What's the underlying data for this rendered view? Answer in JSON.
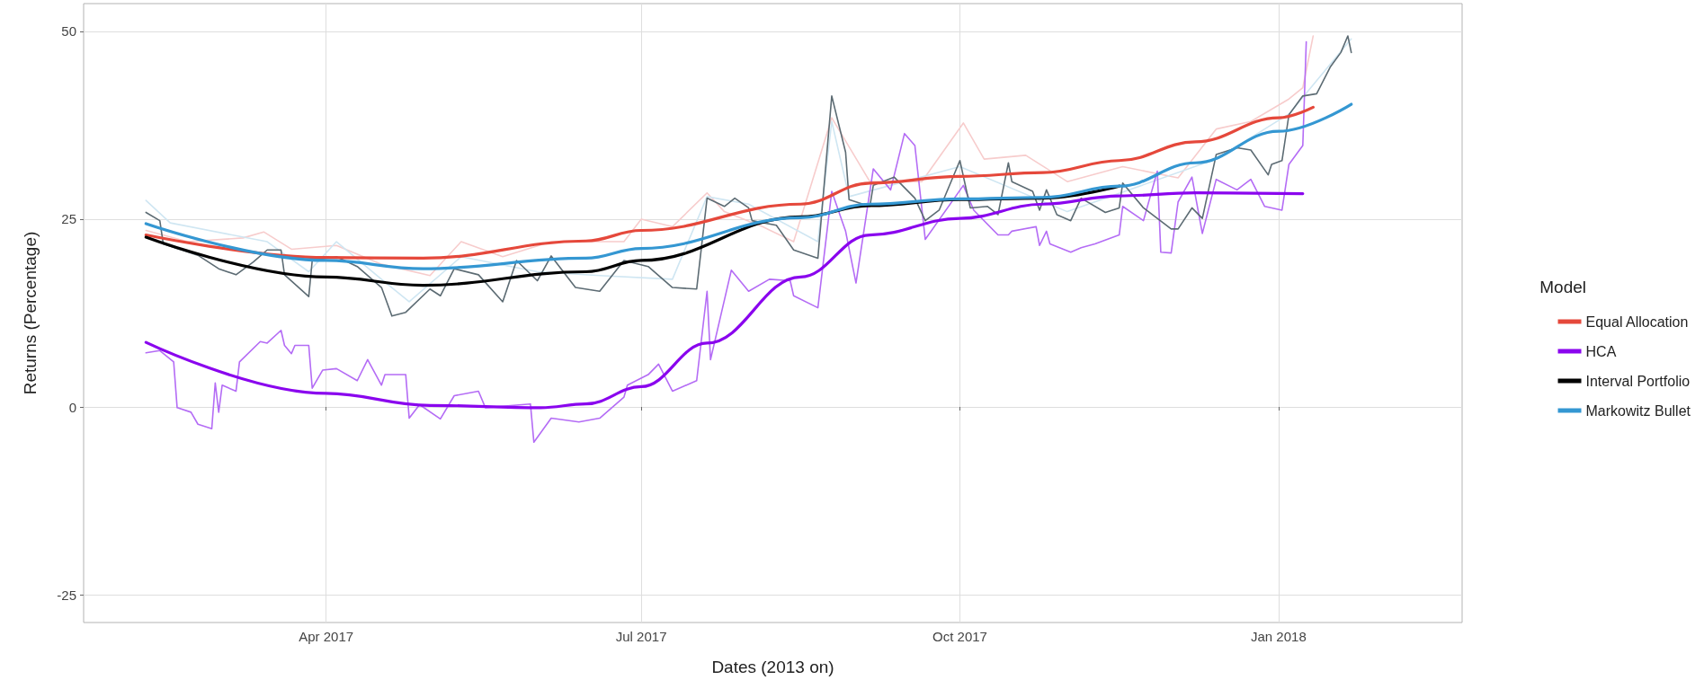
{
  "chart_data": {
    "type": "line",
    "xlabel": "Dates (2013 on)",
    "ylabel": "Returns (Percentage)",
    "legend_title": "Model",
    "legend": "right",
    "grid": true,
    "marker": "none",
    "line_style": "solid",
    "xlim": [
      "2017-01-21",
      "2018-02-23"
    ],
    "xticks": [
      {
        "value": "2017-04-01",
        "label": "Apr 2017"
      },
      {
        "value": "2017-07-01",
        "label": "Jul 2017"
      },
      {
        "value": "2017-10-01",
        "label": "Oct 2017"
      },
      {
        "value": "2018-01-01",
        "label": "Jan 2018"
      }
    ],
    "ylim": [
      -28.7,
      53.7
    ],
    "yticks": [
      -25,
      0,
      25,
      50
    ],
    "series": [
      {
        "color": "#f7cccc",
        "x": [
          "2017-02-08",
          "2017-02-20",
          "2017-03-08",
          "2017-03-14",
          "2017-03-22",
          "2017-04-04",
          "2017-04-17",
          "2017-05-01",
          "2017-05-10",
          "2017-05-22",
          "2017-06-05",
          "2017-06-26",
          "2017-07-01",
          "2017-07-10",
          "2017-07-20",
          "2017-07-25",
          "2017-08-05",
          "2017-08-14",
          "2017-08-25",
          "2017-09-05",
          "2017-09-20",
          "2017-10-02",
          "2017-10-08",
          "2017-10-20",
          "2017-11-01",
          "2017-11-17",
          "2017-12-03",
          "2017-12-14",
          "2017-12-24",
          "2018-01-04",
          "2018-01-08",
          "2018-01-11"
        ],
        "values": [
          23.5,
          22.0,
          22.5,
          23.3,
          21.0,
          21.5,
          19.0,
          17.5,
          22.0,
          20.0,
          22.0,
          22.0,
          25.0,
          24.0,
          28.5,
          26.0,
          24.0,
          22.0,
          38.5,
          30.0,
          30.0,
          37.8,
          33.0,
          33.5,
          30.0,
          32.0,
          30.5,
          37.0,
          38.0,
          41.0,
          42.5,
          49.4
        ]
      },
      {
        "color": "#cfe6f2",
        "x": [
          "2017-02-08",
          "2017-02-15",
          "2017-03-15",
          "2017-03-27",
          "2017-04-04",
          "2017-04-17",
          "2017-04-25",
          "2017-05-10",
          "2017-06-01",
          "2017-06-19",
          "2017-07-10",
          "2017-07-20",
          "2017-08-01",
          "2017-08-21",
          "2017-08-25",
          "2017-08-30",
          "2017-10-01",
          "2017-11-01",
          "2017-12-14",
          "2018-01-04",
          "2018-01-22"
        ],
        "values": [
          27.5,
          24.5,
          22.0,
          18.0,
          22.0,
          17.0,
          14.0,
          20.0,
          18.0,
          17.5,
          17.0,
          28.0,
          27.0,
          22.0,
          38.0,
          28.0,
          32.0,
          26.0,
          33.0,
          39.0,
          49.0
        ]
      },
      {
        "color": "#b46cf5",
        "x": [
          "2017-02-08",
          "2017-02-12",
          "2017-02-16",
          "2017-02-17",
          "2017-02-21",
          "2017-02-23",
          "2017-02-27",
          "2017-02-28",
          "2017-03-01",
          "2017-03-02",
          "2017-03-06",
          "2017-03-07",
          "2017-03-13",
          "2017-03-15",
          "2017-03-19",
          "2017-03-20",
          "2017-03-22",
          "2017-03-23",
          "2017-03-27",
          "2017-03-28",
          "2017-03-31",
          "2017-04-04",
          "2017-04-10",
          "2017-04-13",
          "2017-04-17",
          "2017-04-18",
          "2017-04-24",
          "2017-04-25",
          "2017-04-28",
          "2017-05-04",
          "2017-05-08",
          "2017-05-15",
          "2017-05-17",
          "2017-05-30",
          "2017-05-31",
          "2017-06-05",
          "2017-06-13",
          "2017-06-19",
          "2017-06-26",
          "2017-06-27",
          "2017-07-03",
          "2017-07-06",
          "2017-07-10",
          "2017-07-17",
          "2017-07-20",
          "2017-07-21",
          "2017-07-27",
          "2017-08-01",
          "2017-08-07",
          "2017-08-13",
          "2017-08-14",
          "2017-08-21",
          "2017-08-25",
          "2017-08-29",
          "2017-09-01",
          "2017-09-06",
          "2017-09-11",
          "2017-09-15",
          "2017-09-18",
          "2017-09-21",
          "2017-10-02",
          "2017-10-05",
          "2017-10-12",
          "2017-10-15",
          "2017-10-16",
          "2017-10-23",
          "2017-10-24",
          "2017-10-26",
          "2017-10-27",
          "2017-11-02",
          "2017-11-05",
          "2017-11-09",
          "2017-11-16",
          "2017-11-17",
          "2017-11-23",
          "2017-11-27",
          "2017-11-28",
          "2017-12-01",
          "2017-12-03",
          "2017-12-07",
          "2017-12-10",
          "2017-12-14",
          "2017-12-20",
          "2017-12-24",
          "2017-12-28",
          "2018-01-02",
          "2018-01-04",
          "2018-01-08",
          "2018-01-09"
        ],
        "values": [
          7.2,
          7.5,
          6.0,
          -0.1,
          -0.7,
          -2.3,
          -2.9,
          3.2,
          -0.7,
          2.9,
          2.1,
          6.0,
          8.7,
          8.5,
          10.2,
          8.2,
          7.1,
          8.2,
          8.2,
          2.5,
          4.9,
          5.1,
          3.5,
          6.3,
          2.9,
          4.3,
          4.3,
          -1.5,
          0.3,
          -1.6,
          1.5,
          2.1,
          -0.1,
          0.4,
          -4.7,
          -1.5,
          -2.0,
          -1.5,
          1.3,
          2.9,
          4.3,
          5.7,
          2.1,
          3.5,
          15.4,
          6.3,
          18.2,
          15.4,
          17.0,
          16.8,
          14.8,
          13.2,
          28.7,
          23.4,
          16.5,
          31.7,
          28.9,
          36.4,
          34.8,
          22.3,
          29.5,
          26.2,
          22.9,
          22.9,
          23.4,
          24.0,
          21.5,
          23.4,
          21.7,
          20.6,
          21.2,
          21.7,
          22.9,
          26.7,
          24.8,
          31.4,
          20.6,
          20.5,
          27.3,
          30.6,
          23.1,
          30.3,
          28.9,
          30.3,
          26.7,
          26.2,
          32.3,
          34.8,
          48.6
        ]
      },
      {
        "color": "#5c6b73",
        "x": [
          "2017-02-08",
          "2017-02-12",
          "2017-02-13",
          "2017-02-23",
          "2017-03-01",
          "2017-03-06",
          "2017-03-11",
          "2017-03-15",
          "2017-03-19",
          "2017-03-20",
          "2017-03-27",
          "2017-03-28",
          "2017-04-04",
          "2017-04-10",
          "2017-04-17",
          "2017-04-20",
          "2017-04-24",
          "2017-05-01",
          "2017-05-04",
          "2017-05-08",
          "2017-05-15",
          "2017-05-22",
          "2017-05-26",
          "2017-06-01",
          "2017-06-05",
          "2017-06-12",
          "2017-06-19",
          "2017-06-26",
          "2017-07-03",
          "2017-07-10",
          "2017-07-17",
          "2017-07-20",
          "2017-07-25",
          "2017-07-28",
          "2017-08-01",
          "2017-08-02",
          "2017-08-09",
          "2017-08-14",
          "2017-08-21",
          "2017-08-25",
          "2017-08-29",
          "2017-08-30",
          "2017-09-05",
          "2017-09-06",
          "2017-09-12",
          "2017-09-18",
          "2017-09-21",
          "2017-09-25",
          "2017-10-01",
          "2017-10-04",
          "2017-10-09",
          "2017-10-12",
          "2017-10-15",
          "2017-10-16",
          "2017-10-22",
          "2017-10-24",
          "2017-10-26",
          "2017-10-29",
          "2017-11-02",
          "2017-11-05",
          "2017-11-12",
          "2017-11-16",
          "2017-11-17",
          "2017-11-23",
          "2017-12-01",
          "2017-12-03",
          "2017-12-07",
          "2017-12-10",
          "2017-12-14",
          "2017-12-20",
          "2017-12-24",
          "2017-12-29",
          "2017-12-30",
          "2018-01-02",
          "2018-01-04",
          "2018-01-08",
          "2018-01-12",
          "2018-01-16",
          "2018-01-19",
          "2018-01-21",
          "2018-01-22"
        ],
        "values": [
          25.9,
          24.8,
          21.7,
          20.2,
          18.4,
          17.6,
          19.3,
          20.9,
          20.9,
          17.6,
          14.7,
          19.5,
          20.0,
          18.7,
          15.9,
          12.1,
          12.6,
          15.7,
          14.8,
          18.4,
          17.6,
          14.0,
          19.5,
          16.8,
          20.1,
          15.9,
          15.4,
          19.5,
          18.7,
          15.9,
          15.7,
          27.8,
          26.7,
          27.8,
          26.5,
          24.8,
          24.2,
          20.9,
          19.8,
          41.4,
          33.9,
          27.6,
          26.7,
          29.5,
          30.6,
          27.8,
          24.8,
          26.2,
          32.8,
          26.5,
          26.7,
          25.6,
          32.5,
          30.0,
          28.7,
          26.2,
          28.9,
          25.6,
          24.8,
          27.8,
          25.9,
          26.5,
          29.8,
          26.5,
          23.7,
          23.7,
          26.5,
          25.1,
          33.6,
          34.5,
          34.2,
          30.9,
          32.3,
          32.8,
          38.9,
          41.4,
          41.7,
          45.3,
          47.2,
          49.4,
          47.2
        ]
      },
      {
        "name": "Equal Allocation",
        "color": "#e5483b",
        "x": [
          "2017-02-08",
          "2017-04-01",
          "2017-04-29",
          "2017-06-15",
          "2017-07-01",
          "2017-08-16",
          "2017-09-05",
          "2017-10-01",
          "2017-10-25",
          "2017-11-16",
          "2017-12-08",
          "2018-01-01",
          "2018-01-11"
        ],
        "values": [
          22.9,
          19.9,
          19.8,
          22.1,
          23.5,
          27.0,
          29.8,
          30.7,
          31.2,
          32.8,
          35.3,
          38.5,
          39.9
        ]
      },
      {
        "name": "HCA",
        "color": "#8a05ee",
        "x": [
          "2017-02-08",
          "2017-04-01",
          "2017-05-01",
          "2017-06-02",
          "2017-06-15",
          "2017-07-01",
          "2017-07-20",
          "2017-08-16",
          "2017-09-05",
          "2017-10-01",
          "2017-10-25",
          "2017-11-16",
          "2017-12-08",
          "2018-01-08"
        ],
        "values": [
          8.6,
          1.8,
          0.2,
          -0.1,
          0.4,
          2.7,
          8.5,
          17.3,
          22.9,
          25.1,
          27.0,
          28.1,
          28.5,
          28.4
        ]
      },
      {
        "name": "Interval Portfolio",
        "color": "#000000",
        "x": [
          "2017-02-08",
          "2017-04-01",
          "2017-04-29",
          "2017-06-15",
          "2017-07-01",
          "2017-08-16",
          "2017-09-05",
          "2017-10-01",
          "2017-10-25",
          "2017-11-16"
        ],
        "values": [
          22.6,
          17.3,
          16.2,
          18.0,
          19.5,
          25.3,
          26.8,
          27.6,
          27.8,
          29.4
        ]
      },
      {
        "name": "Markowitz Bullet",
        "color": "#3497d2",
        "x": [
          "2017-02-08",
          "2017-04-01",
          "2017-04-29",
          "2017-06-15",
          "2017-07-01",
          "2017-08-16",
          "2017-09-05",
          "2017-10-01",
          "2017-10-25",
          "2017-11-16",
          "2017-12-08",
          "2018-01-01",
          "2018-01-22"
        ],
        "values": [
          24.4,
          19.5,
          18.4,
          19.8,
          21.1,
          25.2,
          27.0,
          27.7,
          27.9,
          29.4,
          32.5,
          36.7,
          40.3
        ]
      }
    ]
  }
}
